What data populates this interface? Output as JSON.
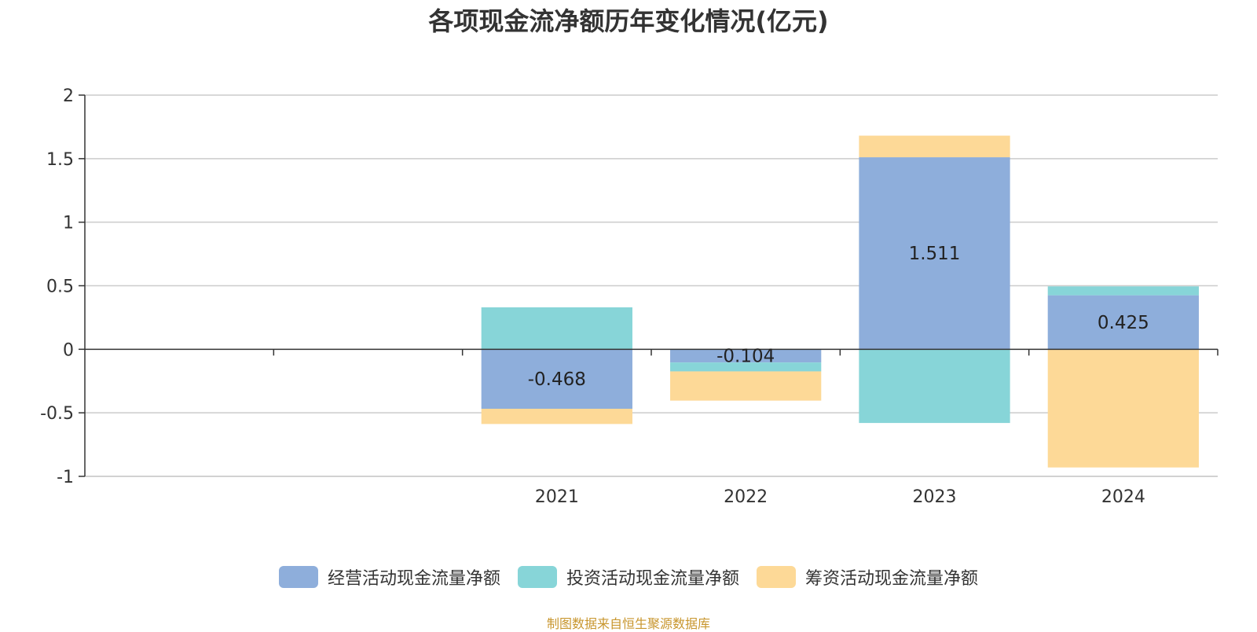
{
  "title": "各项现金流净额历年变化情况(亿元)",
  "source": "制图数据来自恒生聚源数据库",
  "chart_data": {
    "type": "bar",
    "stacked": true,
    "title": "各项现金流净额历年变化情况(亿元)",
    "categories": [
      "",
      "",
      "2021",
      "2022",
      "2023",
      "2024"
    ],
    "ylim": [
      -1,
      2
    ],
    "yticks": [
      2,
      1.5,
      1,
      0.5,
      0,
      -0.5,
      -1
    ],
    "ytick_labels": [
      "2",
      "1.5",
      "1",
      "0.5",
      "0",
      "-0.5",
      "-1"
    ],
    "grid": true,
    "legend_position": "bottom",
    "series": [
      {
        "name": "经营活动现金流量净额",
        "color": "#8eaedb",
        "values": [
          null,
          null,
          -0.468,
          -0.104,
          1.511,
          0.425
        ],
        "labels": [
          "",
          "",
          "-0.468",
          "-0.104",
          "1.511",
          "0.425"
        ]
      },
      {
        "name": "投资活动现金流量净额",
        "color": "#87d5d8",
        "values": [
          null,
          null,
          0.33,
          -0.07,
          -0.58,
          0.07
        ],
        "labels": [
          "",
          "",
          "",
          "",
          "",
          ""
        ]
      },
      {
        "name": "筹资活动现金流量净额",
        "color": "#fdd997",
        "values": [
          null,
          null,
          -0.12,
          -0.23,
          0.17,
          -0.93
        ],
        "labels": [
          "",
          "",
          "",
          "",
          "",
          ""
        ]
      }
    ]
  }
}
